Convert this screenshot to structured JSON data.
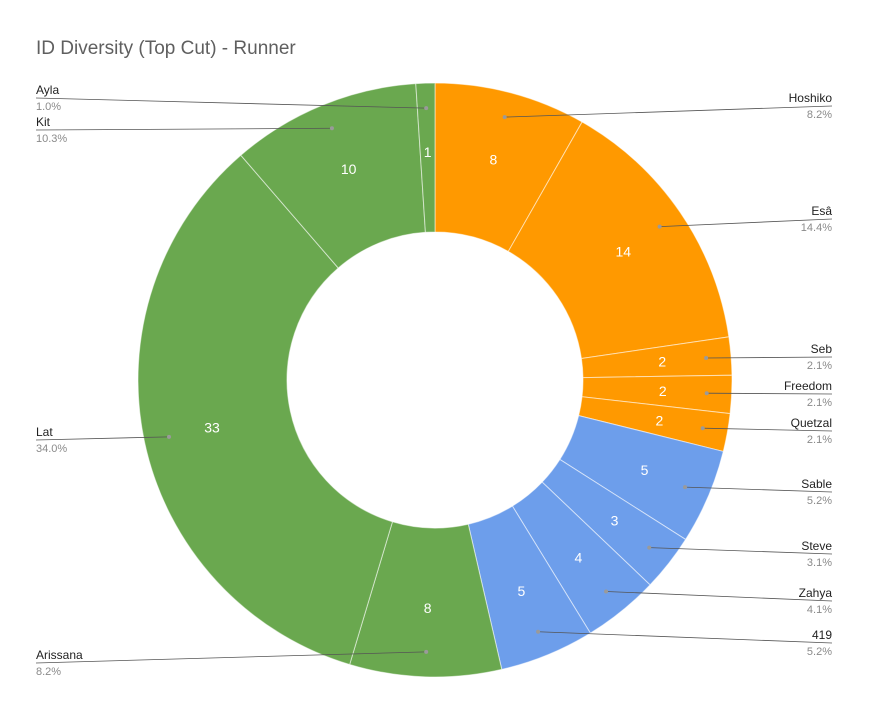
{
  "chart_data": {
    "type": "pie",
    "donut": true,
    "title": "ID Diversity (Top Cut) - Runner",
    "slices": [
      {
        "label": "Hoshiko",
        "value": 8,
        "percent": "8.2%",
        "color": "#ff9900"
      },
      {
        "label": "Esâ",
        "value": 14,
        "percent": "14.4%",
        "color": "#ff9900"
      },
      {
        "label": "Seb",
        "value": 2,
        "percent": "2.1%",
        "color": "#ff9900"
      },
      {
        "label": "Freedom",
        "value": 2,
        "percent": "2.1%",
        "color": "#ff9900"
      },
      {
        "label": "Quetzal",
        "value": 2,
        "percent": "2.1%",
        "color": "#ff9900"
      },
      {
        "label": "Sable",
        "value": 5,
        "percent": "5.2%",
        "color": "#6d9eeb"
      },
      {
        "label": "Steve",
        "value": 3,
        "percent": "3.1%",
        "color": "#6d9eeb"
      },
      {
        "label": "Zahya",
        "value": 4,
        "percent": "4.1%",
        "color": "#6d9eeb"
      },
      {
        "label": "419",
        "value": 5,
        "percent": "5.2%",
        "color": "#6d9eeb"
      },
      {
        "label": "Arissana",
        "value": 8,
        "percent": "8.2%",
        "color": "#6aa84f"
      },
      {
        "label": "Lat",
        "value": 33,
        "percent": "34.0%",
        "color": "#6aa84f"
      },
      {
        "label": "Kit",
        "value": 10,
        "percent": "10.3%",
        "color": "#6aa84f"
      },
      {
        "label": "Ayla",
        "value": 1,
        "percent": "1.0%",
        "color": "#6aa84f"
      }
    ]
  }
}
